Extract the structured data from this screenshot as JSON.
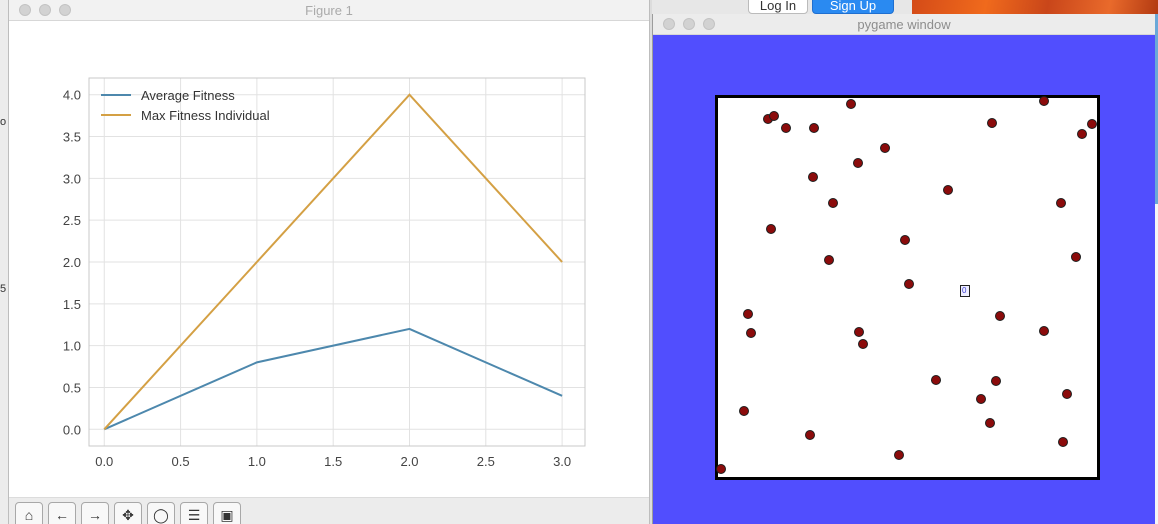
{
  "figure_window": {
    "title": "Figure 1",
    "toolbar": [
      {
        "name": "home-icon",
        "glyph": "⌂"
      },
      {
        "name": "back-icon",
        "glyph": "←"
      },
      {
        "name": "forward-icon",
        "glyph": "→"
      },
      {
        "name": "pan-icon",
        "glyph": "✥"
      },
      {
        "name": "zoom-icon",
        "glyph": "◯"
      },
      {
        "name": "configure-icon",
        "glyph": "☰"
      },
      {
        "name": "save-icon",
        "glyph": "▣"
      }
    ]
  },
  "chart_data": {
    "type": "line",
    "title": "",
    "xlabel": "",
    "ylabel": "",
    "x": [
      0,
      1,
      2,
      3
    ],
    "series": [
      {
        "name": "Average Fitness",
        "values": [
          0.0,
          0.8,
          1.2,
          0.4
        ],
        "color": "#4d88ad"
      },
      {
        "name": "Max Fitness Individual",
        "values": [
          0.0,
          2.0,
          4.0,
          2.0
        ],
        "color": "#d4a044"
      }
    ],
    "xlim": [
      -0.1,
      3.15
    ],
    "ylim": [
      -0.2,
      4.2
    ],
    "xticks": [
      "0.0",
      "0.5",
      "1.0",
      "1.5",
      "2.0",
      "2.5",
      "3.0"
    ],
    "yticks": [
      "0.0",
      "0.5",
      "1.0",
      "1.5",
      "2.0",
      "2.5",
      "3.0",
      "3.5",
      "4.0"
    ],
    "grid": true,
    "legend_position": "top-left"
  },
  "pygame_window": {
    "title": "pygame window",
    "agent_label": "0",
    "food_count": 40
  },
  "browser": {
    "login_label": "Log In",
    "signup_label": "Sign Up"
  },
  "edge_text": {
    "left": [
      "o",
      "5"
    ],
    "right": [
      "2",
      "0",
      "e",
      "e"
    ]
  },
  "colors": {
    "pygame_bg": "#514efe",
    "food": "#8b0b0b",
    "arena": "#ffffff"
  }
}
